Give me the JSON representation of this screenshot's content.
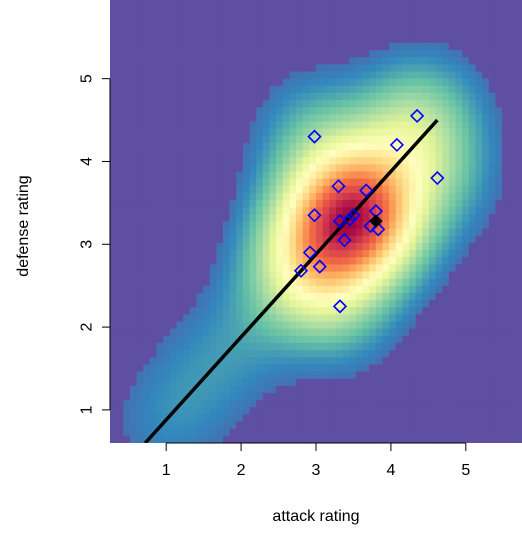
{
  "chart_data": {
    "type": "scatter",
    "title": "",
    "xlabel": "attack rating",
    "ylabel": "defense rating",
    "xlim": [
      0.25,
      5.75
    ],
    "ylim": [
      0.6,
      5.95
    ],
    "xticks": [
      1,
      2,
      3,
      4,
      5
    ],
    "yticks": [
      1,
      2,
      3,
      4,
      5
    ],
    "grid": false,
    "legend": "none",
    "background": {
      "type": "heatmap",
      "description_of_colormap": "Spectral (purple low, red high)",
      "low_color": "#5E4FA2",
      "colormap": [
        "#5E4FA2",
        "#3288BD",
        "#66C2A5",
        "#ABDDA4",
        "#E6F598",
        "#FFFFBF",
        "#FEE08B",
        "#FDAE61",
        "#F46D43",
        "#D53E4F",
        "#9E0142"
      ]
    },
    "points": {
      "marker": "open-diamond",
      "color": "#0000FF",
      "x": [
        4.35,
        2.98,
        4.08,
        4.62,
        3.3,
        3.67,
        3.8,
        2.98,
        3.5,
        3.32,
        3.45,
        3.73,
        3.83,
        3.38,
        2.92,
        3.05,
        2.8,
        3.32
      ],
      "y": [
        4.55,
        4.3,
        4.2,
        3.8,
        3.7,
        3.65,
        3.4,
        3.35,
        3.35,
        3.28,
        3.3,
        3.22,
        3.18,
        3.05,
        2.9,
        2.73,
        2.68,
        2.25
      ]
    },
    "mean_point": {
      "x": 3.8,
      "y": 3.28,
      "marker": "filled-diamond",
      "color": "#000000"
    },
    "fit_line": {
      "color": "#000000",
      "x": [
        0.72,
        4.62
      ],
      "y": [
        0.6,
        4.5
      ]
    }
  }
}
